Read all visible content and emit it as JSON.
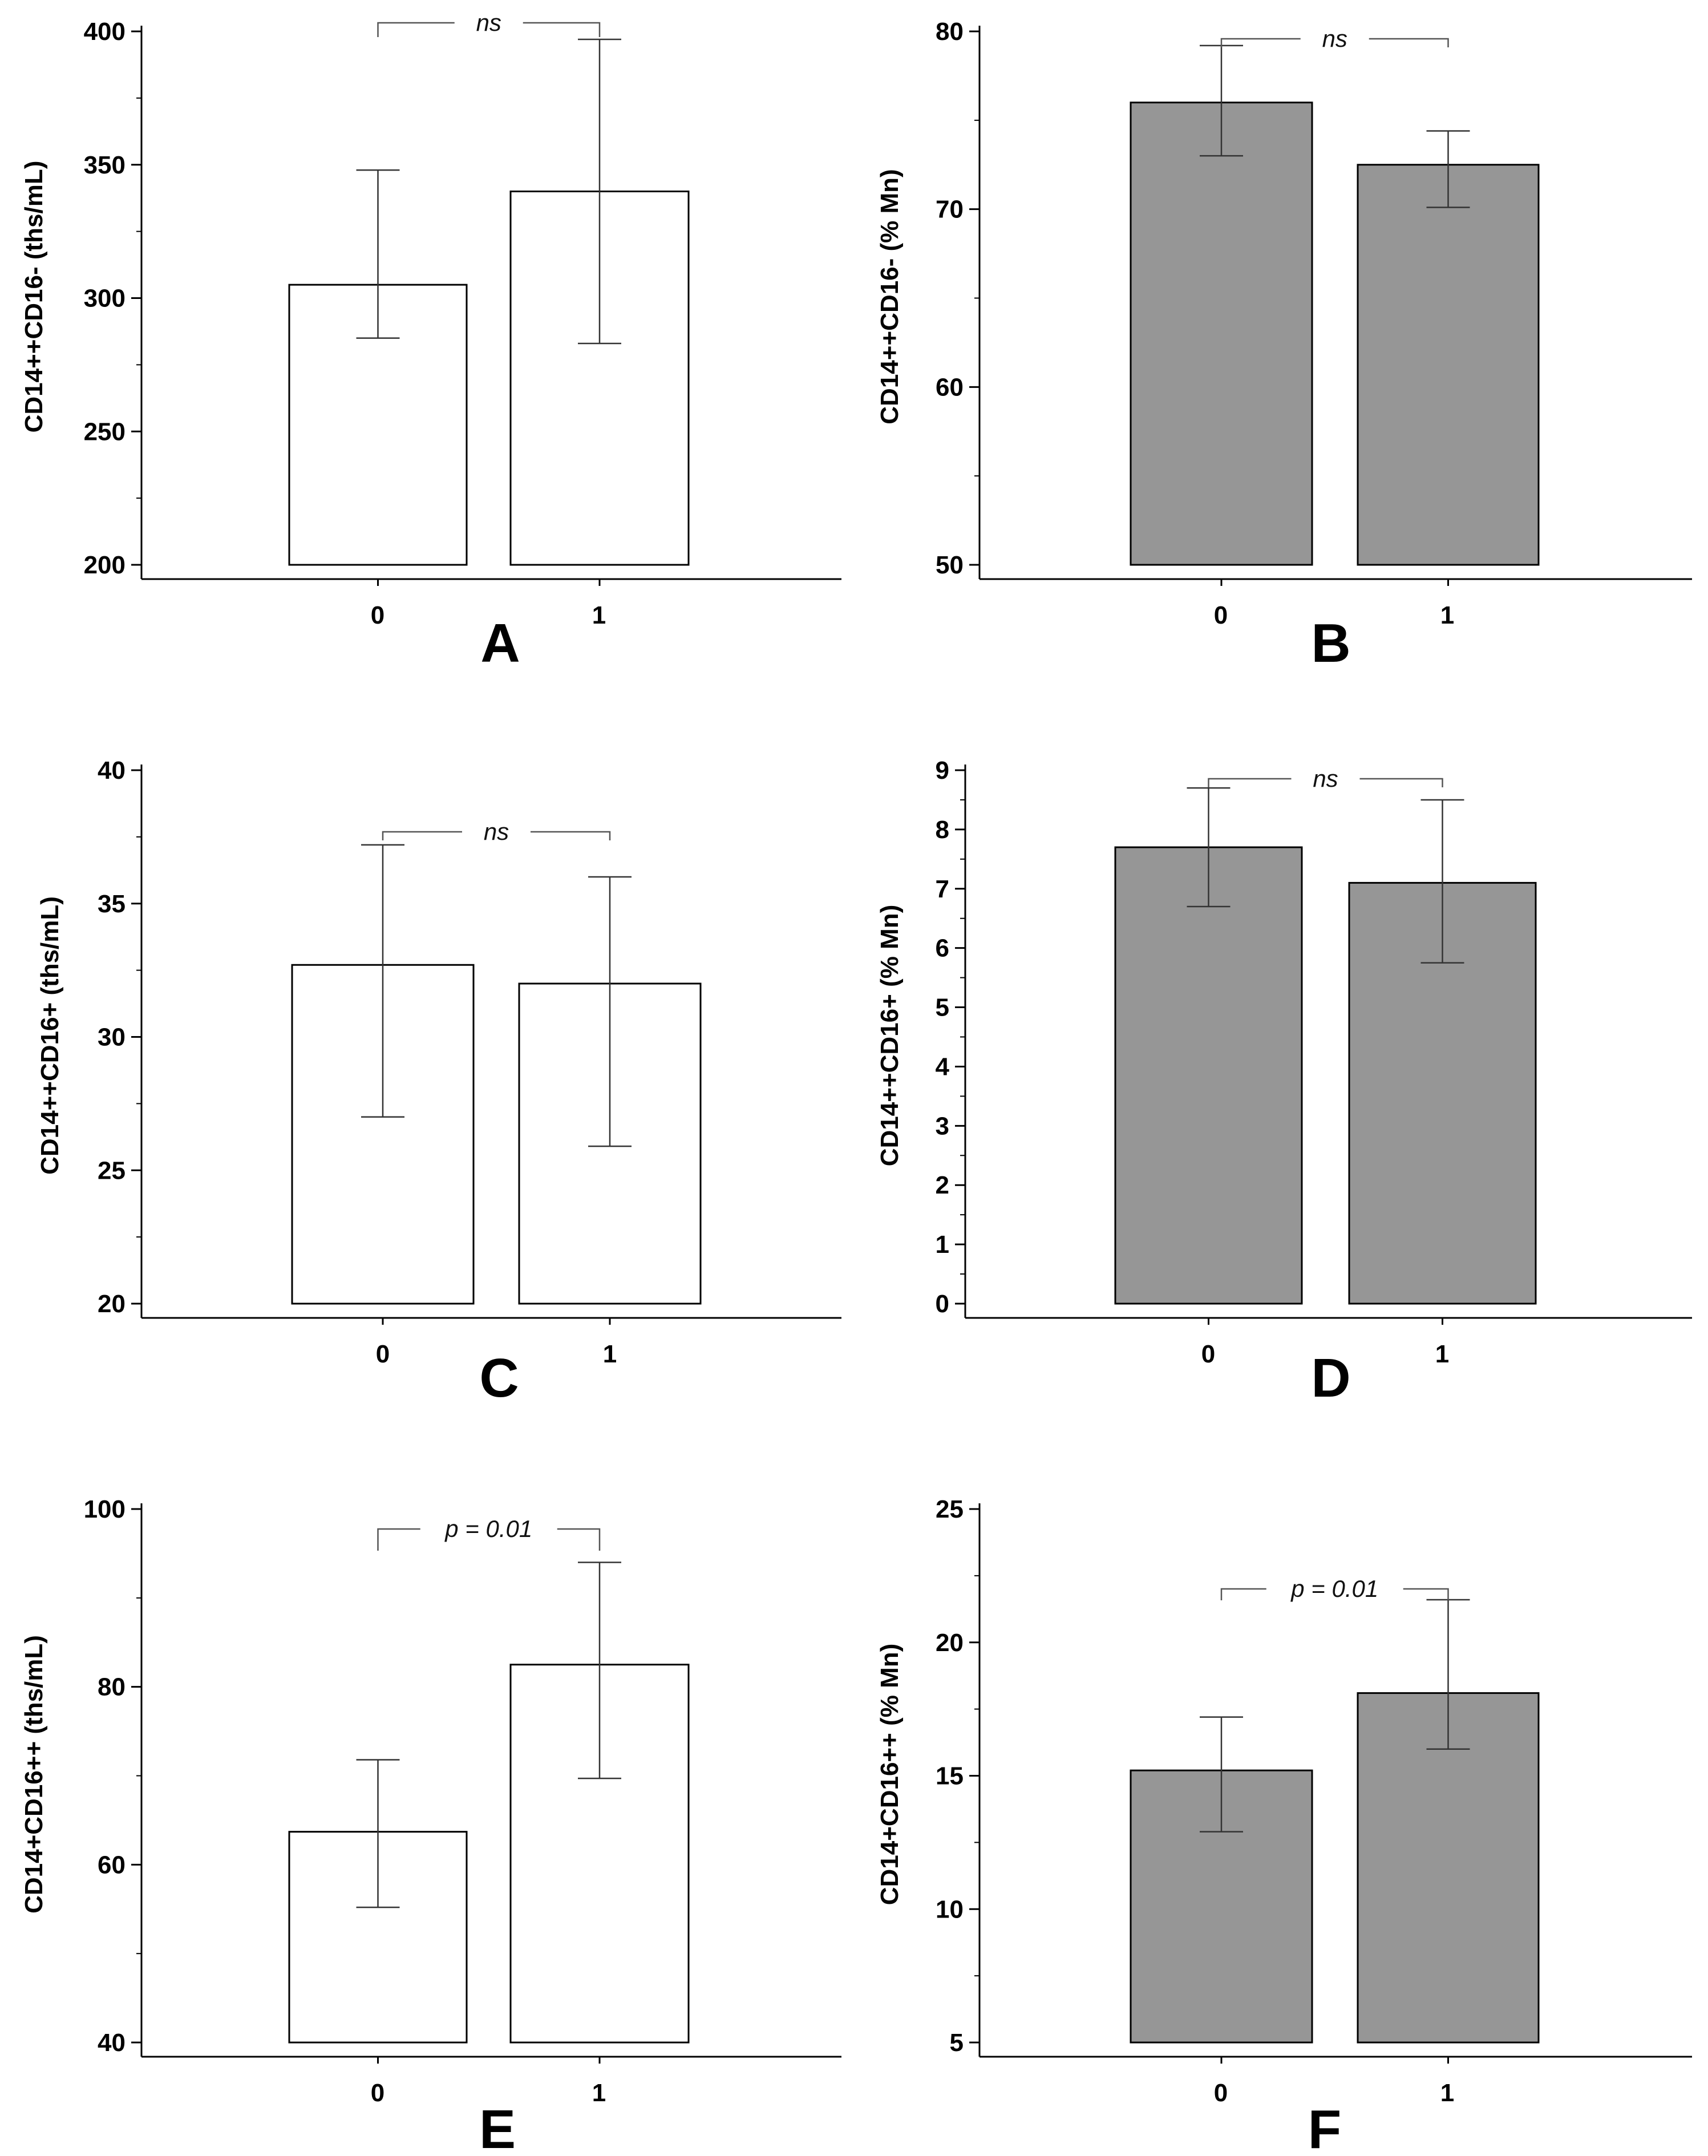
{
  "chart_data": [
    {
      "panel": "A",
      "type": "bar",
      "categories": [
        "0",
        "1"
      ],
      "values": [
        305,
        340
      ],
      "error_low": [
        285,
        283
      ],
      "error_high": [
        348,
        397
      ],
      "ylabel": "CD14++CD16- (ths/mL)",
      "ylim": [
        200,
        400
      ],
      "yticks": [
        200,
        250,
        300,
        350,
        400
      ],
      "bar_color": "#ffffff",
      "significance": "ns"
    },
    {
      "panel": "B",
      "type": "bar",
      "categories": [
        "0",
        "1"
      ],
      "values": [
        76,
        72.5
      ],
      "error_low": [
        73,
        70.1
      ],
      "error_high": [
        79.2,
        74.4
      ],
      "ylabel": "CD14++CD16- (% Mn)",
      "ylim": [
        50,
        80
      ],
      "yticks": [
        50,
        60,
        70,
        80
      ],
      "bar_color": "#969696",
      "significance": "ns"
    },
    {
      "panel": "C",
      "type": "bar",
      "categories": [
        "0",
        "1"
      ],
      "values": [
        32.7,
        32
      ],
      "error_low": [
        27,
        25.9
      ],
      "error_high": [
        37.2,
        36
      ],
      "ylabel": "CD14++CD16+ (ths/mL)",
      "ylim": [
        20,
        40
      ],
      "yticks": [
        20,
        25,
        30,
        35,
        40
      ],
      "bar_color": "#ffffff",
      "significance": "ns"
    },
    {
      "panel": "D",
      "type": "bar",
      "categories": [
        "0",
        "1"
      ],
      "values": [
        7.7,
        7.1
      ],
      "error_low": [
        6.7,
        5.75
      ],
      "error_high": [
        8.7,
        8.5
      ],
      "ylabel": "CD14++CD16+ (% Mn)",
      "ylim": [
        0,
        9
      ],
      "yticks": [
        0,
        1,
        2,
        3,
        4,
        5,
        6,
        7,
        8,
        9
      ],
      "bar_color": "#969696",
      "significance": "ns"
    },
    {
      "panel": "E",
      "type": "bar",
      "categories": [
        "0",
        "1"
      ],
      "values": [
        63.7,
        82.5
      ],
      "error_low": [
        55.2,
        69.7
      ],
      "error_high": [
        71.8,
        94
      ],
      "ylabel": "CD14+CD16++ (ths/mL)",
      "ylim": [
        40,
        100
      ],
      "yticks": [
        40,
        60,
        80,
        100
      ],
      "bar_color": "#ffffff",
      "significance": "p = 0.01"
    },
    {
      "panel": "F",
      "type": "bar",
      "categories": [
        "0",
        "1"
      ],
      "values": [
        15.2,
        18.1
      ],
      "error_low": [
        12.9,
        16
      ],
      "error_high": [
        17.2,
        21.6
      ],
      "ylabel": "CD14+CD16++ (% Mn)",
      "ylim": [
        5,
        25
      ],
      "yticks": [
        5,
        10,
        15,
        20,
        25
      ],
      "bar_color": "#969696",
      "significance": "p = 0.01"
    }
  ]
}
